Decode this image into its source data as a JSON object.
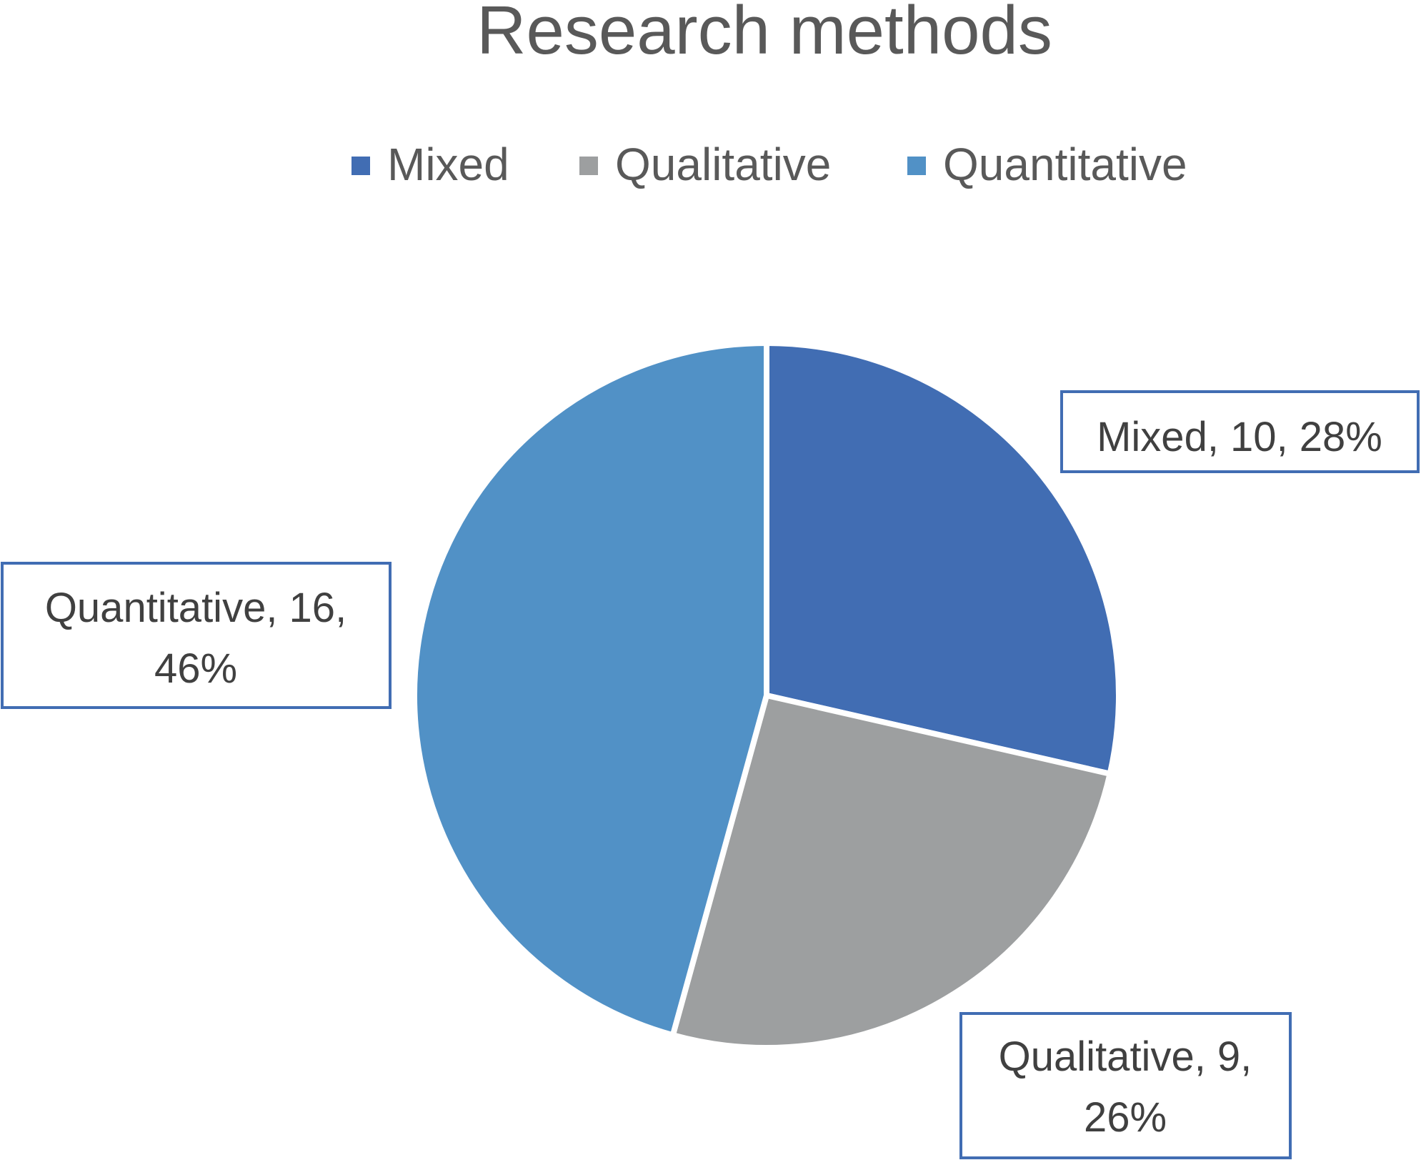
{
  "chart_data": {
    "type": "pie",
    "title": "Research methods",
    "categories": [
      "Mixed",
      "Qualitative",
      "Quantitative"
    ],
    "values": [
      10,
      9,
      16
    ],
    "percentages": [
      "28%",
      "26%",
      "46%"
    ],
    "data_labels": [
      [
        "Mixed, 10, 28%"
      ],
      [
        "Qualitative, 9,",
        "26%"
      ],
      [
        "Quantitative, 16,",
        "46%"
      ]
    ],
    "colors": [
      "#416DB3",
      "#9D9FA0",
      "#5191C6"
    ],
    "label_border_color": "#416DB3",
    "start_angle_deg": 0,
    "direction": "clockwise",
    "legend": "top"
  }
}
